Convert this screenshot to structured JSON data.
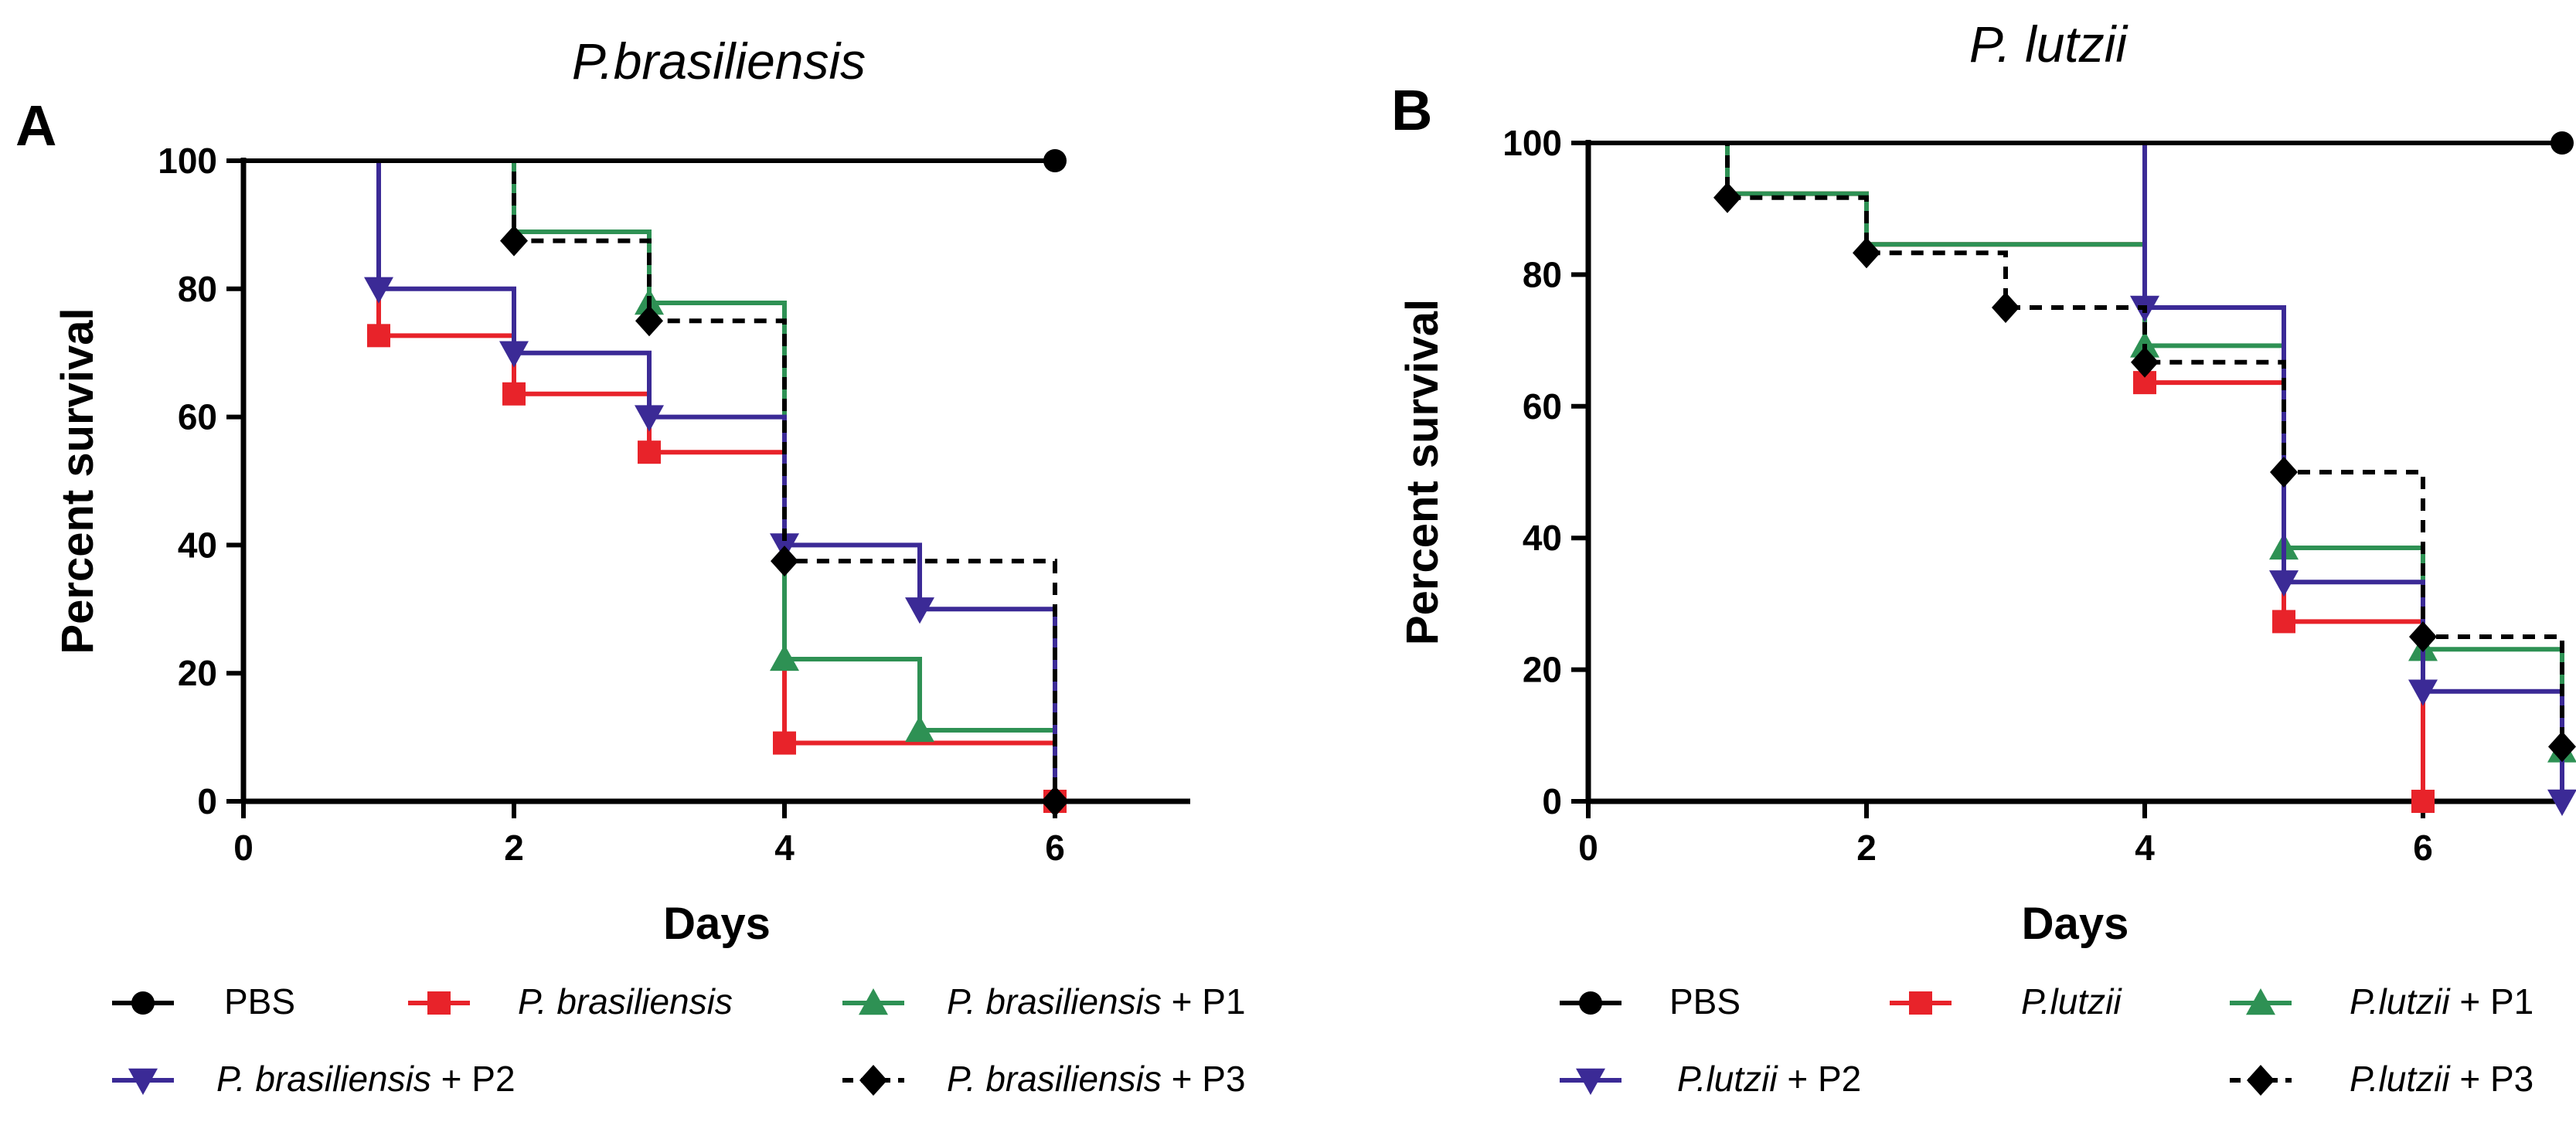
{
  "chart_data": [
    {
      "panel_label": "A",
      "type": "line",
      "step": true,
      "title": "P.brasiliensis",
      "xlabel": "Days",
      "ylabel": "Percent survival",
      "xlim": [
        0,
        7
      ],
      "ylim": [
        0,
        100
      ],
      "xticks": [
        "0",
        "2",
        "4",
        "6"
      ],
      "yticks": [
        "0",
        "20",
        "40",
        "60",
        "80",
        "100"
      ],
      "series": [
        {
          "name": "PBS",
          "name_italic": "",
          "name_suffix": "",
          "marker": "circle",
          "color": "#000000",
          "dashed": false,
          "points": [
            [
              0,
              100
            ],
            [
              6,
              100
            ]
          ],
          "markers": [
            [
              6,
              100
            ]
          ]
        },
        {
          "name": "P. brasiliensis",
          "name_italic": "P. brasiliensis",
          "name_suffix": "",
          "marker": "square",
          "color": "#e8232a",
          "dashed": false,
          "points": [
            [
              0,
              100
            ],
            [
              1,
              72.7
            ],
            [
              2,
              63.6
            ],
            [
              3,
              54.5
            ],
            [
              4,
              9.1
            ],
            [
              6,
              0
            ]
          ],
          "markers": [
            [
              1,
              72.7
            ],
            [
              2,
              63.6
            ],
            [
              3,
              54.5
            ],
            [
              4,
              9.1
            ],
            [
              6,
              0
            ]
          ]
        },
        {
          "name": "P. brasiliensis + P1",
          "name_italic": "P. brasiliensis",
          "name_suffix": " + P1",
          "marker": "triangle-up",
          "color": "#2e9154",
          "dashed": false,
          "points": [
            [
              0,
              100
            ],
            [
              2,
              88.9
            ],
            [
              3,
              77.8
            ],
            [
              4,
              22.2
            ],
            [
              5,
              11.1
            ],
            [
              6,
              0
            ]
          ],
          "markers": [
            [
              3,
              77.8
            ],
            [
              4,
              22.2
            ],
            [
              5,
              11.1
            ]
          ]
        },
        {
          "name": "P. brasiliensis + P2",
          "name_italic": "P. brasiliensis",
          "name_suffix": " + P2",
          "marker": "triangle-down",
          "color": "#3b2a96",
          "dashed": false,
          "points": [
            [
              0,
              100
            ],
            [
              1,
              80
            ],
            [
              2,
              70
            ],
            [
              3,
              60
            ],
            [
              4,
              40
            ],
            [
              5,
              30
            ],
            [
              6,
              0
            ]
          ],
          "markers": [
            [
              1,
              80
            ],
            [
              2,
              70
            ],
            [
              3,
              60
            ],
            [
              4,
              40
            ],
            [
              5,
              30
            ]
          ]
        },
        {
          "name": "P. brasiliensis + P3",
          "name_italic": "P. brasiliensis",
          "name_suffix": " + P3",
          "marker": "diamond",
          "color": "#000000",
          "dashed": true,
          "points": [
            [
              0,
              100
            ],
            [
              2,
              87.5
            ],
            [
              3,
              75
            ],
            [
              4,
              37.5
            ],
            [
              6,
              0
            ]
          ],
          "markers": [
            [
              2,
              87.5
            ],
            [
              3,
              75
            ],
            [
              4,
              37.5
            ],
            [
              6,
              0
            ]
          ]
        }
      ]
    },
    {
      "panel_label": "B",
      "type": "line",
      "step": true,
      "title": "P. lutzii",
      "xlabel": "Days",
      "ylabel": "Percent survival",
      "xlim": [
        0,
        7
      ],
      "ylim": [
        0,
        100
      ],
      "xticks": [
        "0",
        "2",
        "4",
        "6"
      ],
      "yticks": [
        "0",
        "20",
        "40",
        "60",
        "80",
        "100"
      ],
      "series": [
        {
          "name": "PBS",
          "name_italic": "",
          "name_suffix": "",
          "marker": "circle",
          "color": "#000000",
          "dashed": false,
          "points": [
            [
              0,
              100
            ],
            [
              7,
              100
            ]
          ],
          "markers": [
            [
              7,
              100
            ]
          ]
        },
        {
          "name": "P.lutzii",
          "name_italic": "P.lutzii",
          "name_suffix": "",
          "marker": "square",
          "color": "#e8232a",
          "dashed": false,
          "points": [
            [
              0,
              100
            ],
            [
              1,
              92.3
            ],
            [
              2,
              84.6
            ],
            [
              4,
              63.6
            ],
            [
              5,
              27.3
            ],
            [
              6,
              0
            ]
          ],
          "markers": [
            [
              4,
              63.6
            ],
            [
              5,
              27.3
            ],
            [
              6,
              0
            ]
          ]
        },
        {
          "name": "P.lutzii + P1",
          "name_italic": "P.lutzii",
          "name_suffix": " + P1",
          "marker": "triangle-up",
          "color": "#2e9154",
          "dashed": false,
          "points": [
            [
              0,
              100
            ],
            [
              1,
              92.3
            ],
            [
              2,
              84.6
            ],
            [
              4,
              69.2
            ],
            [
              5,
              38.5
            ],
            [
              6,
              23.1
            ],
            [
              7,
              7.7
            ]
          ],
          "markers": [
            [
              4,
              69.2
            ],
            [
              5,
              38.5
            ],
            [
              6,
              23.1
            ],
            [
              7,
              7.7
            ]
          ]
        },
        {
          "name": "P.lutzii + P2",
          "name_italic": "P.lutzii",
          "name_suffix": " + P2",
          "marker": "triangle-down",
          "color": "#3b2a96",
          "dashed": false,
          "points": [
            [
              0,
              100
            ],
            [
              4,
              75
            ],
            [
              5,
              33.3
            ],
            [
              6,
              16.7
            ],
            [
              7,
              0
            ]
          ],
          "markers": [
            [
              4,
              75
            ],
            [
              5,
              33.3
            ],
            [
              6,
              16.7
            ],
            [
              7,
              0
            ]
          ]
        },
        {
          "name": "P.lutzii + P3",
          "name_italic": "P.lutzii",
          "name_suffix": " + P3",
          "marker": "diamond",
          "color": "#000000",
          "dashed": true,
          "points": [
            [
              0,
              100
            ],
            [
              1,
              91.7
            ],
            [
              2,
              83.3
            ],
            [
              3,
              75
            ],
            [
              4,
              66.7
            ],
            [
              5,
              50
            ],
            [
              6,
              25
            ],
            [
              7,
              8.3
            ]
          ],
          "markers": [
            [
              1,
              91.7
            ],
            [
              2,
              83.3
            ],
            [
              3,
              75
            ],
            [
              4,
              66.7
            ],
            [
              5,
              50
            ],
            [
              6,
              25
            ],
            [
              7,
              8.3
            ]
          ]
        }
      ]
    }
  ]
}
